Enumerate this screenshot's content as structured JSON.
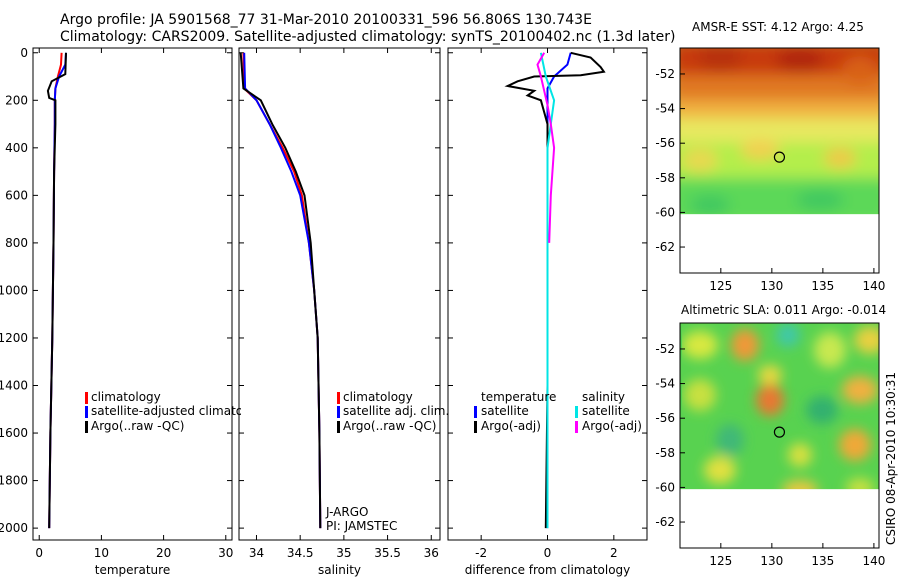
{
  "header": {
    "line1": "Argo profile: JA 5901568_77 31-Mar-2010 20100331_596 56.806S 130.743E",
    "line2": "Climatology: CARS2009. Satellite-adjusted climatology: synTS_20100402.nc (1.3d later)"
  },
  "side_label": "CSIRO 08-Apr-2010 10:30:31",
  "colors": {
    "climatology": "#ff0000",
    "satellite": "#0000ff",
    "argo": "#000000",
    "sal_satellite": "#00e5e5",
    "sal_argo": "#ff00ff"
  },
  "chart_data": [
    {
      "type": "line",
      "name": "temperature",
      "xlabel": "temperature",
      "xlim": [
        -1,
        31
      ],
      "ylim": [
        2050,
        -20
      ],
      "xticks": [
        0,
        10,
        20,
        30
      ],
      "yticks": [
        0,
        200,
        400,
        600,
        800,
        1000,
        1200,
        1400,
        1600,
        1800,
        2000
      ],
      "legend": [
        "climatology",
        "satellite-adjusted climatology",
        "Argo(..raw -QC)"
      ],
      "series": [
        {
          "name": "climatology",
          "color": "#ff0000",
          "points": [
            [
              3.6,
              0
            ],
            [
              3.5,
              50
            ],
            [
              3.0,
              100
            ],
            [
              2.6,
              150
            ],
            [
              2.5,
              200
            ],
            [
              2.5,
              300
            ],
            [
              2.4,
              500
            ],
            [
              2.3,
              800
            ],
            [
              2.1,
              1200
            ],
            [
              1.8,
              1600
            ],
            [
              1.6,
              2000
            ]
          ]
        },
        {
          "name": "satellite-adjusted climatology",
          "color": "#0000ff",
          "points": [
            [
              4.3,
              0
            ],
            [
              4.2,
              50
            ],
            [
              3.2,
              100
            ],
            [
              2.6,
              150
            ],
            [
              2.5,
              200
            ],
            [
              2.5,
              300
            ],
            [
              2.4,
              500
            ],
            [
              2.3,
              800
            ],
            [
              2.1,
              1200
            ],
            [
              1.8,
              1600
            ],
            [
              1.6,
              2000
            ]
          ]
        },
        {
          "name": "Argo(..raw -QC)",
          "color": "#000000",
          "points": [
            [
              4.3,
              0
            ],
            [
              4.2,
              90
            ],
            [
              2.0,
              120
            ],
            [
              1.4,
              160
            ],
            [
              1.6,
              190
            ],
            [
              2.6,
              200
            ],
            [
              2.6,
              300
            ],
            [
              2.4,
              500
            ],
            [
              2.3,
              800
            ],
            [
              2.1,
              1200
            ],
            [
              1.8,
              1600
            ],
            [
              1.6,
              2000
            ]
          ]
        }
      ]
    },
    {
      "type": "line",
      "name": "salinity",
      "xlabel": "salinity",
      "xlim": [
        33.8,
        36.1
      ],
      "ylim": [
        2050,
        -20
      ],
      "xticks": [
        34,
        34.5,
        35,
        35.5,
        36
      ],
      "yticks": [
        0,
        200,
        400,
        600,
        800,
        1000,
        1200,
        1400,
        1600,
        1800,
        2000
      ],
      "legend": [
        "climatology",
        "satellite adj. clim.",
        "Argo(..raw -QC)"
      ],
      "annotations": [
        "J-ARGO",
        "PI: JAMSTEC"
      ],
      "series": [
        {
          "name": "climatology",
          "color": "#ff0000",
          "points": [
            [
              33.85,
              0
            ],
            [
              33.86,
              150
            ],
            [
              34.0,
              200
            ],
            [
              34.15,
              300
            ],
            [
              34.3,
              400
            ],
            [
              34.43,
              500
            ],
            [
              34.52,
              600
            ],
            [
              34.6,
              800
            ],
            [
              34.66,
              1000
            ],
            [
              34.7,
              1200
            ],
            [
              34.72,
              1600
            ],
            [
              34.73,
              2000
            ]
          ]
        },
        {
          "name": "satellite adj. clim.",
          "color": "#0000ff",
          "points": [
            [
              33.86,
              0
            ],
            [
              33.87,
              150
            ],
            [
              34.0,
              200
            ],
            [
              34.15,
              300
            ],
            [
              34.28,
              400
            ],
            [
              34.4,
              500
            ],
            [
              34.5,
              600
            ],
            [
              34.6,
              800
            ],
            [
              34.66,
              1000
            ],
            [
              34.7,
              1200
            ],
            [
              34.72,
              1600
            ],
            [
              34.73,
              2000
            ]
          ]
        },
        {
          "name": "Argo(..raw -QC)",
          "color": "#000000",
          "points": [
            [
              33.82,
              0
            ],
            [
              33.85,
              150
            ],
            [
              34.05,
              200
            ],
            [
              34.18,
              300
            ],
            [
              34.33,
              400
            ],
            [
              34.45,
              500
            ],
            [
              34.55,
              600
            ],
            [
              34.62,
              800
            ],
            [
              34.66,
              1000
            ],
            [
              34.7,
              1200
            ],
            [
              34.72,
              1600
            ],
            [
              34.73,
              2000
            ]
          ]
        }
      ]
    },
    {
      "type": "line",
      "name": "difference",
      "xlabel": "difference from climatology",
      "xlim": [
        -3,
        3
      ],
      "ylim": [
        2050,
        -20
      ],
      "xticks": [
        -2,
        0,
        2
      ],
      "yticks": [
        0,
        200,
        400,
        600,
        800,
        1000,
        1200,
        1400,
        1600,
        1800,
        2000
      ],
      "legend_left_title": "temperature",
      "legend_right_title": "salinity",
      "legend": [
        "satellite",
        "Argo(-adj)",
        "satellite",
        "Argo(-adj)"
      ],
      "series": [
        {
          "name": "temperature satellite",
          "color": "#0000ff",
          "points": [
            [
              0.7,
              0
            ],
            [
              0.6,
              50
            ],
            [
              0.2,
              100
            ],
            [
              0.0,
              150
            ],
            [
              0.0,
              400
            ],
            [
              0.0,
              1000
            ],
            [
              0.0,
              2000
            ]
          ]
        },
        {
          "name": "temperature Argo(-adj)",
          "color": "#000000",
          "points": [
            [
              0.7,
              0
            ],
            [
              1.3,
              20
            ],
            [
              1.6,
              60
            ],
            [
              1.7,
              80
            ],
            [
              1.0,
              95
            ],
            [
              -0.4,
              100
            ],
            [
              -0.9,
              120
            ],
            [
              -1.2,
              140
            ],
            [
              -0.4,
              160
            ],
            [
              -0.6,
              180
            ],
            [
              -0.2,
              200
            ],
            [
              0.0,
              300
            ],
            [
              0.0,
              800
            ],
            [
              0.0,
              1400
            ],
            [
              -0.05,
              2000
            ]
          ]
        },
        {
          "name": "salinity satellite",
          "color": "#00e5e5",
          "points": [
            [
              -0.2,
              0
            ],
            [
              -0.05,
              100
            ],
            [
              0.2,
              200
            ],
            [
              0.1,
              300
            ],
            [
              0.0,
              400
            ],
            [
              0.0,
              800
            ],
            [
              0.0,
              2000
            ]
          ]
        },
        {
          "name": "salinity Argo(-adj)",
          "color": "#ff00ff",
          "points": [
            [
              -0.1,
              0
            ],
            [
              -0.3,
              50
            ],
            [
              -0.2,
              100
            ],
            [
              -0.1,
              160
            ],
            [
              0.0,
              220
            ],
            [
              0.1,
              300
            ],
            [
              0.2,
              400
            ],
            [
              0.1,
              600
            ],
            [
              0.05,
              800
            ]
          ]
        }
      ]
    }
  ],
  "maps": [
    {
      "title": "AMSR-E SST: 4.12  Argo: 4.25",
      "xticks": [
        125,
        130,
        135,
        140
      ],
      "yticks": [
        -52,
        -54,
        -56,
        -58,
        -60,
        -62
      ],
      "xlim": [
        121,
        140.5
      ],
      "ylim": [
        -63.5,
        -50.5
      ],
      "coverage_lat_min": -60.1,
      "float_marker": [
        130.743,
        -56.806
      ]
    },
    {
      "title": "Altimetric SLA: 0.011  Argo: -0.014",
      "xticks": [
        125,
        130,
        135,
        140
      ],
      "yticks": [
        -52,
        -54,
        -56,
        -58,
        -60,
        -62
      ],
      "xlim": [
        121,
        140.5
      ],
      "ylim": [
        -63.5,
        -50.5
      ],
      "coverage_lat_min": -60.1,
      "float_marker": [
        130.743,
        -56.806
      ]
    }
  ]
}
